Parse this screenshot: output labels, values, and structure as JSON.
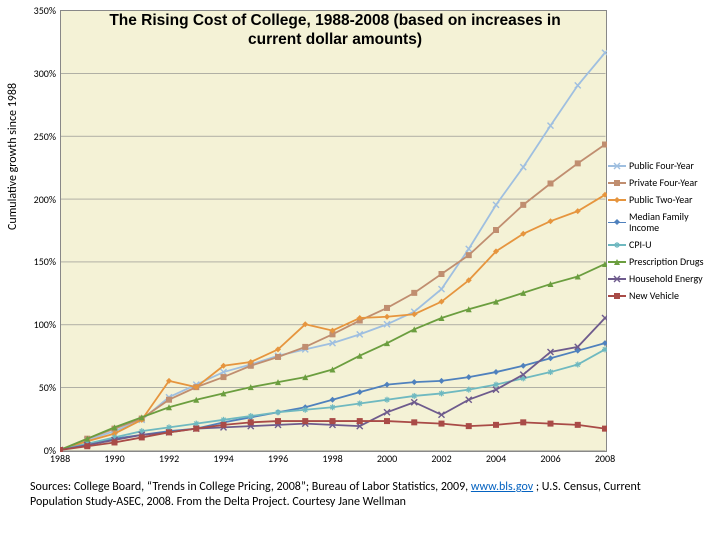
{
  "chart": {
    "type": "line",
    "title": "The Rising Cost of College, 1988-2008 (based on increases in current dollar amounts)",
    "title_fontsize": 15.5,
    "ylabel": "Cumulative growth since 1988",
    "label_fontsize": 12,
    "tick_fontsize": 10,
    "legend_fontsize": 10,
    "background_color": "#ffffff",
    "plot_bgcolor": "#f4f2d6",
    "border_color": "#888888",
    "grid_color": "#888888",
    "xlim": [
      1988,
      2008
    ],
    "ylim": [
      0,
      350
    ],
    "ytick_step": 50,
    "ytick_suffix": "%",
    "xtick_step": 2,
    "x": [
      1988,
      1989,
      1990,
      1991,
      1992,
      1993,
      1994,
      1995,
      1996,
      1997,
      1998,
      1999,
      2000,
      2001,
      2002,
      2003,
      2004,
      2005,
      2006,
      2007,
      2008
    ],
    "series": [
      {
        "name": "Public Four-Year",
        "color": "#9fbfe0",
        "marker": "x",
        "y": [
          0,
          8,
          15,
          24,
          42,
          52,
          62,
          68,
          75,
          80,
          85,
          92,
          100,
          110,
          128,
          160,
          195,
          225,
          258,
          290,
          316
        ]
      },
      {
        "name": "Private Four-Year",
        "color": "#c08e70",
        "marker": "square",
        "y": [
          0,
          9,
          17,
          25,
          40,
          50,
          58,
          67,
          74,
          82,
          92,
          103,
          113,
          125,
          140,
          155,
          175,
          195,
          212,
          228,
          243
        ]
      },
      {
        "name": "Public Two-Year",
        "color": "#e6953e",
        "marker": "diamond",
        "y": [
          0,
          7,
          13,
          24,
          55,
          50,
          67,
          70,
          80,
          100,
          95,
          105,
          106,
          108,
          118,
          135,
          158,
          172,
          182,
          190,
          203
        ]
      },
      {
        "name": "Median Family Income",
        "color": "#4f81bd",
        "marker": "diamond",
        "y": [
          0,
          5,
          9,
          12,
          15,
          17,
          22,
          26,
          30,
          34,
          40,
          46,
          52,
          54,
          55,
          58,
          62,
          67,
          73,
          79,
          85
        ]
      },
      {
        "name": "CPI-U",
        "color": "#6fb9c0",
        "marker": "asterisk",
        "y": [
          0,
          5,
          10,
          15,
          18,
          21,
          24,
          27,
          30,
          32,
          34,
          37,
          40,
          43,
          45,
          48,
          52,
          57,
          62,
          68,
          80
        ]
      },
      {
        "name": "Prescription Drugs",
        "color": "#6b9e3f",
        "marker": "triangle",
        "y": [
          0,
          9,
          18,
          26,
          34,
          40,
          45,
          50,
          54,
          58,
          64,
          75,
          85,
          96,
          105,
          112,
          118,
          125,
          132,
          138,
          148
        ]
      },
      {
        "name": "Household Energy",
        "color": "#6e5b8d",
        "marker": "x",
        "y": [
          0,
          4,
          8,
          12,
          14,
          17,
          18,
          19,
          20,
          21,
          20,
          19,
          30,
          38,
          28,
          40,
          48,
          60,
          78,
          82,
          105
        ]
      },
      {
        "name": "New Vehicle",
        "color": "#a94b47",
        "marker": "square",
        "y": [
          0,
          3,
          6,
          10,
          14,
          17,
          20,
          22,
          23,
          23,
          23,
          23,
          23,
          22,
          21,
          19,
          20,
          22,
          21,
          20,
          17
        ]
      }
    ]
  },
  "sources": {
    "prefix": "Sources: College Board, “Trends in College Pricing, 2008”; Bureau of Labor Statistics, 2009, ",
    "link_text": "www.bls.gov",
    "link_href": "http://www.bls.gov",
    "suffix": " ; U.S. Census, Current Population Study-ASEC, 2008. From the Delta Project.  Courtesy Jane Wellman"
  }
}
